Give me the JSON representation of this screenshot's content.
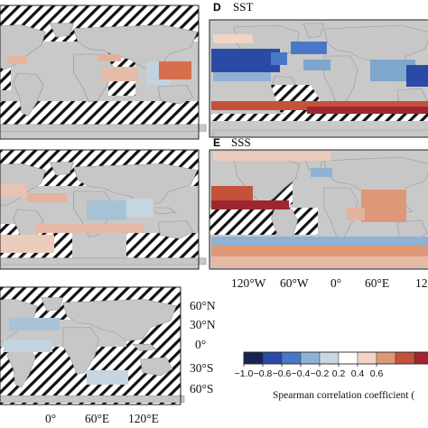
{
  "panels": [
    {
      "letter": "D",
      "variable": "SST"
    },
    {
      "letter": "E",
      "variable": "SSS"
    }
  ],
  "longitude_labels_top": [
    "120°W",
    "60°W",
    "0°",
    "60°E",
    "120"
  ],
  "longitude_labels_bottom": [
    "0°",
    "60°E",
    "120°E"
  ],
  "latitude_labels": [
    "60°N",
    "30°N",
    "0°",
    "30°S",
    "60°S"
  ],
  "colorbar": {
    "ticks": [
      "−1.0",
      "−0.8",
      "−0.6",
      "−0.4",
      "−0.2",
      "0.2",
      "0.4",
      "0.6"
    ],
    "title": "Spearman correlation coefficient (",
    "colors": [
      "#1a2350",
      "#2a4aa6",
      "#4a78c8",
      "#8fb2d4",
      "#c8d7e2",
      "#ffffff",
      "#f1d4c4",
      "#dc9877",
      "#c4523a",
      "#a1252e"
    ]
  }
}
